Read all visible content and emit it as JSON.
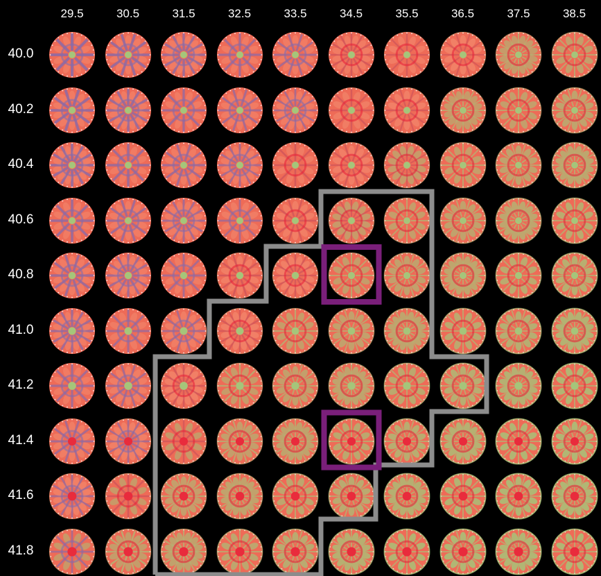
{
  "grid": {
    "column_labels": [
      "29.5",
      "30.5",
      "31.5",
      "32.5",
      "33.5",
      "34.5",
      "35.5",
      "36.5",
      "37.5",
      "38.5"
    ],
    "row_labels": [
      "40.0",
      "40.2",
      "40.4",
      "40.6",
      "40.8",
      "41.0",
      "41.2",
      "41.4",
      "41.6",
      "41.8"
    ]
  },
  "colors": {
    "background": "#000000",
    "label_text": "#ffffff",
    "region_outline": "#8c8c8c",
    "highlight_box": "#7a1f7a",
    "tile_base": "#ee6b57",
    "tile_accent_purple": "#8a6aa8",
    "tile_accent_green": "#9ccf7e",
    "tile_accent_red": "#e8253a"
  },
  "highlighted_cells": [
    {
      "column": "34.5",
      "row": "40.8"
    },
    {
      "column": "34.5",
      "row": "41.4"
    }
  ]
}
